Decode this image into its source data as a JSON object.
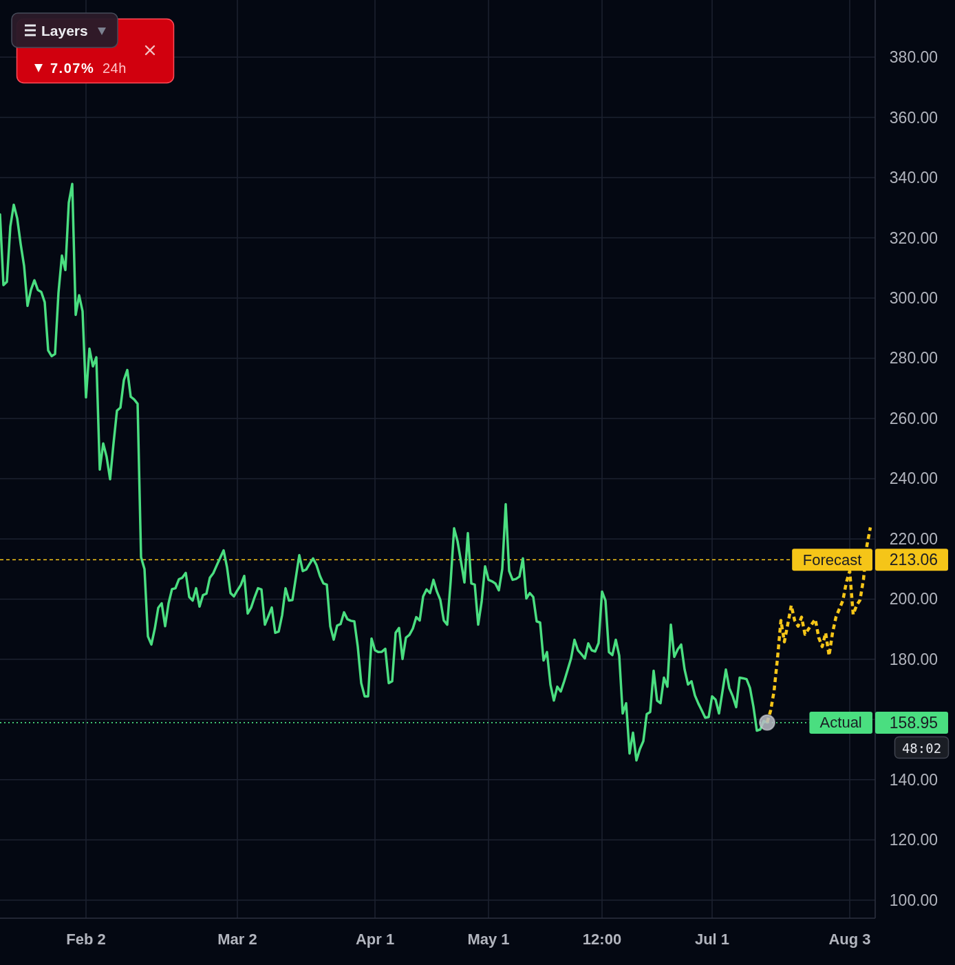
{
  "chart_data": {
    "type": "line",
    "categories": [
      null,
      null,
      null,
      null,
      null,
      null,
      null,
      null,
      null,
      null,
      null,
      null,
      null,
      null,
      null,
      null,
      null,
      null,
      null,
      null,
      null,
      null,
      null,
      null,
      null,
      "Feb 2",
      null,
      null,
      null,
      null,
      null,
      null,
      null,
      null,
      null,
      null,
      null,
      null,
      null,
      null,
      null,
      null,
      null,
      null,
      null,
      null,
      null,
      null,
      null,
      null,
      null,
      null,
      null,
      null,
      null,
      null,
      null,
      null,
      null,
      null,
      null,
      null,
      null,
      null,
      null,
      null,
      null,
      null,
      null,
      "Mar 2",
      null,
      null,
      null,
      null,
      null,
      null,
      null,
      null,
      null,
      null,
      null,
      null,
      null,
      null,
      null,
      null,
      null,
      null,
      null,
      null,
      null,
      null,
      null,
      null,
      null,
      null,
      null,
      null,
      null,
      null,
      null,
      null,
      null,
      null,
      null,
      null,
      null,
      null,
      null,
      "Apr 1",
      null,
      null,
      null,
      null,
      null,
      null,
      null,
      null,
      null,
      null,
      null,
      null,
      null,
      null,
      null,
      null,
      null,
      null,
      null,
      null,
      null,
      null,
      null,
      null,
      null,
      null,
      null,
      null,
      null,
      null,
      null,
      null,
      "May 1",
      null,
      null,
      null,
      null,
      null,
      null,
      null,
      null,
      null,
      null,
      null,
      null,
      null,
      null,
      null,
      null,
      null,
      null,
      null,
      null,
      null,
      null,
      null,
      null,
      null,
      null,
      null,
      null,
      null,
      null,
      null,
      null,
      "12:00",
      null,
      null,
      null,
      null,
      null,
      null,
      null,
      null,
      null,
      null,
      null,
      null,
      null,
      null,
      null,
      null,
      null,
      null,
      null,
      null,
      null,
      null,
      null,
      null,
      null,
      null,
      null,
      null,
      null,
      null,
      null,
      "Jul 1",
      null,
      null,
      null,
      null,
      null,
      null,
      null,
      null,
      null,
      null,
      null,
      null,
      null,
      null,
      null,
      null,
      null,
      null,
      null,
      null,
      null,
      null,
      null,
      null,
      null,
      null,
      null,
      null,
      null,
      null,
      null,
      null,
      null,
      null,
      null,
      null,
      null,
      null,
      null,
      "Aug 3",
      null,
      null,
      null,
      null,
      null,
      null,
      null
    ],
    "ylim": [
      94,
      399
    ],
    "yticks": [
      {
        "value": 100,
        "label": "100.00"
      },
      {
        "value": 120,
        "label": "120.00"
      },
      {
        "value": 140,
        "label": "140.00"
      },
      {
        "value": 160,
        "label": null
      },
      {
        "value": 180,
        "label": "180.00"
      },
      {
        "value": 200,
        "label": "200.00"
      },
      {
        "value": 220,
        "label": "220.00"
      },
      {
        "value": 240,
        "label": "240.00"
      },
      {
        "value": 260,
        "label": "260.00"
      },
      {
        "value": 280,
        "label": "280.00"
      },
      {
        "value": 300,
        "label": "300.00"
      },
      {
        "value": 320,
        "label": "320.00"
      },
      {
        "value": 340,
        "label": "340.00"
      },
      {
        "value": 360,
        "label": "360.00"
      },
      {
        "value": 380,
        "label": "380.00"
      }
    ],
    "grid": true,
    "series": [
      {
        "color": "#4ade80",
        "values": [
          327.8,
          304.3,
          305.4,
          323.7,
          331.0,
          326.5,
          318.0,
          310.7,
          297.4,
          302.7,
          305.9,
          302.7,
          302.0,
          298.6,
          282.6,
          280.7,
          281.4,
          301.8,
          314.1,
          309.3,
          331.7,
          337.9,
          294.4,
          300.9,
          295.6,
          267.0,
          283.2,
          277.3,
          280.3,
          243.0,
          251.7,
          247.2,
          239.8,
          251.7,
          262.6,
          263.6,
          272.7,
          276.1,
          267.2,
          266.3,
          264.9,
          213.9,
          210.0,
          187.6,
          184.9,
          190.2,
          197.1,
          198.6,
          191.0,
          198.6,
          203.3,
          203.6,
          206.6,
          207.1,
          208.7,
          200.7,
          199.5,
          203.6,
          197.5,
          201.3,
          201.8,
          207.1,
          208.6,
          211.2,
          213.7,
          216.2,
          210.5,
          202.0,
          200.9,
          202.9,
          204.7,
          207.7,
          195.2,
          197.2,
          200.6,
          203.6,
          203.2,
          191.5,
          194.3,
          197.2,
          188.8,
          189.2,
          194.6,
          203.6,
          199.5,
          199.7,
          207.2,
          214.6,
          209.3,
          209.8,
          211.7,
          213.5,
          211.3,
          207.7,
          205.2,
          204.8,
          191.0,
          186.5,
          191.2,
          191.7,
          195.6,
          193.3,
          192.8,
          192.6,
          184.2,
          172.1,
          167.7,
          167.7,
          186.9,
          183.0,
          182.4,
          182.5,
          183.5,
          172.1,
          172.7,
          188.8,
          190.4,
          180.1,
          187.2,
          188.1,
          190.2,
          194.0,
          192.9,
          200.9,
          203.2,
          202.0,
          206.4,
          202.5,
          199.7,
          192.9,
          191.5,
          205.9,
          223.5,
          219.2,
          212.4,
          205.5,
          221.9,
          205.2,
          204.8,
          191.5,
          199.1,
          210.9,
          206.4,
          205.9,
          205.2,
          202.9,
          210.0,
          231.5,
          209.3,
          206.4,
          206.7,
          207.5,
          213.5,
          200.2,
          202.0,
          200.7,
          192.6,
          192.2,
          179.6,
          182.4,
          171.6,
          166.3,
          170.9,
          169.3,
          172.7,
          176.5,
          180.3,
          186.5,
          183.0,
          181.7,
          180.3,
          185.3,
          183.0,
          182.6,
          185.4,
          202.5,
          199.5,
          182.4,
          181.4,
          186.5,
          181.2,
          162.0,
          165.4,
          148.7,
          155.6,
          146.4,
          150.2,
          152.8,
          161.8,
          162.5,
          176.2,
          166.3,
          165.4,
          173.9,
          170.9,
          191.5,
          180.8,
          183.3,
          184.9,
          176.6,
          171.6,
          172.7,
          168.0,
          165.3,
          163.0,
          160.6,
          160.8,
          167.7,
          166.6,
          162.0,
          169.3,
          176.6,
          170.4,
          167.7,
          164.1,
          173.9,
          173.7,
          173.4,
          170.5,
          164.3,
          156.3,
          156.7,
          159.5,
          159.0,
          null,
          null,
          null,
          null,
          null,
          null,
          null,
          null,
          null,
          null,
          null,
          null,
          null,
          null,
          null,
          null,
          null,
          null,
          null,
          null,
          null,
          null,
          null,
          null,
          null,
          null,
          null,
          null,
          null,
          null,
          null
        ]
      },
      {
        "color": "#f5c518",
        "line_style": "dashed",
        "values": [
          null,
          null,
          null,
          null,
          null,
          null,
          null,
          null,
          null,
          null,
          null,
          null,
          null,
          null,
          null,
          null,
          null,
          null,
          null,
          null,
          null,
          null,
          null,
          null,
          null,
          null,
          null,
          null,
          null,
          null,
          null,
          null,
          null,
          null,
          null,
          null,
          null,
          null,
          null,
          null,
          null,
          null,
          null,
          null,
          null,
          null,
          null,
          null,
          null,
          null,
          null,
          null,
          null,
          null,
          null,
          null,
          null,
          null,
          null,
          null,
          null,
          null,
          null,
          null,
          null,
          null,
          null,
          null,
          null,
          null,
          null,
          null,
          null,
          null,
          null,
          null,
          null,
          null,
          null,
          null,
          null,
          null,
          null,
          null,
          null,
          null,
          null,
          null,
          null,
          null,
          null,
          null,
          null,
          null,
          null,
          null,
          null,
          null,
          null,
          null,
          null,
          null,
          null,
          null,
          null,
          null,
          null,
          null,
          null,
          null,
          null,
          null,
          null,
          null,
          null,
          null,
          null,
          null,
          null,
          null,
          null,
          null,
          null,
          null,
          null,
          null,
          null,
          null,
          null,
          null,
          null,
          null,
          null,
          null,
          null,
          null,
          null,
          null,
          null,
          null,
          null,
          null,
          null,
          null,
          null,
          null,
          null,
          null,
          null,
          null,
          null,
          null,
          null,
          null,
          null,
          null,
          null,
          null,
          null,
          null,
          null,
          null,
          null,
          null,
          null,
          null,
          null,
          null,
          null,
          null,
          null,
          null,
          null,
          null,
          null,
          null,
          null,
          null,
          null,
          null,
          null,
          null,
          null,
          null,
          null,
          null,
          null,
          null,
          null,
          null,
          null,
          null,
          null,
          null,
          null,
          null,
          null,
          null,
          null,
          null,
          null,
          null,
          null,
          null,
          null,
          null,
          null,
          null,
          null,
          null,
          null,
          null,
          null,
          null,
          null,
          null,
          null,
          null,
          null,
          null,
          null,
          null,
          null,
          159.0,
          162.9,
          169.4,
          180.3,
          192.9,
          185.8,
          191.7,
          197.9,
          192.9,
          191.0,
          194.0,
          188.3,
          190.0,
          191.7,
          193.3,
          187.2,
          184.2,
          188.8,
          181.2,
          188.8,
          194.0,
          196.8,
          199.5,
          205.5,
          209.3,
          194.9,
          197.9,
          199.7,
          206.6,
          217.8,
          223.8,
          null
        ]
      },
      {
        "type": "scatter",
        "color": "#b8bcc6",
        "marker": "circle",
        "values": [
          null,
          null,
          null,
          null,
          null,
          null,
          null,
          null,
          null,
          null,
          null,
          null,
          null,
          null,
          null,
          null,
          null,
          null,
          null,
          null,
          null,
          null,
          null,
          null,
          null,
          null,
          null,
          null,
          null,
          null,
          null,
          null,
          null,
          null,
          null,
          null,
          null,
          null,
          null,
          null,
          null,
          null,
          null,
          null,
          null,
          null,
          null,
          null,
          null,
          null,
          null,
          null,
          null,
          null,
          null,
          null,
          null,
          null,
          null,
          null,
          null,
          null,
          null,
          null,
          null,
          null,
          null,
          null,
          null,
          null,
          null,
          null,
          null,
          null,
          null,
          null,
          null,
          null,
          null,
          null,
          null,
          null,
          null,
          null,
          null,
          null,
          null,
          null,
          null,
          null,
          null,
          null,
          null,
          null,
          null,
          null,
          null,
          null,
          null,
          null,
          null,
          null,
          null,
          null,
          null,
          null,
          null,
          null,
          null,
          null,
          null,
          null,
          null,
          null,
          null,
          null,
          null,
          null,
          null,
          null,
          null,
          null,
          null,
          null,
          null,
          null,
          null,
          null,
          null,
          null,
          null,
          null,
          null,
          null,
          null,
          null,
          null,
          null,
          null,
          null,
          null,
          null,
          null,
          null,
          null,
          null,
          null,
          null,
          null,
          null,
          null,
          null,
          null,
          null,
          null,
          null,
          null,
          null,
          null,
          null,
          null,
          null,
          null,
          null,
          null,
          null,
          null,
          null,
          null,
          null,
          null,
          null,
          null,
          null,
          null,
          null,
          null,
          null,
          null,
          null,
          null,
          null,
          null,
          null,
          null,
          null,
          null,
          null,
          null,
          null,
          null,
          null,
          null,
          null,
          null,
          null,
          null,
          null,
          null,
          null,
          null,
          null,
          null,
          null,
          null,
          null,
          null,
          null,
          null,
          null,
          null,
          null,
          null,
          null,
          null,
          null,
          null,
          null,
          null,
          null,
          null,
          null,
          null,
          159.0,
          null,
          null,
          null,
          null,
          null,
          null,
          null,
          null,
          null,
          null,
          null,
          null,
          null,
          null,
          null,
          null,
          null,
          null,
          null,
          null,
          null,
          null,
          null,
          null,
          null,
          null,
          null,
          null,
          null,
          null,
          null
        ]
      }
    ],
    "ref_lines": [
      {
        "axis": "y",
        "value": 213.06,
        "label": "Forecast",
        "color": "#f5c518",
        "line_style": "dashed"
      },
      {
        "axis": "y",
        "value": 158.95,
        "label": "Actual",
        "color": "#4ade80",
        "line_style": "dotted"
      }
    ],
    "annotations": [
      "Layers",
      "7.07%",
      "24h",
      "48:02",
      "213.06",
      "158.95"
    ]
  }
}
